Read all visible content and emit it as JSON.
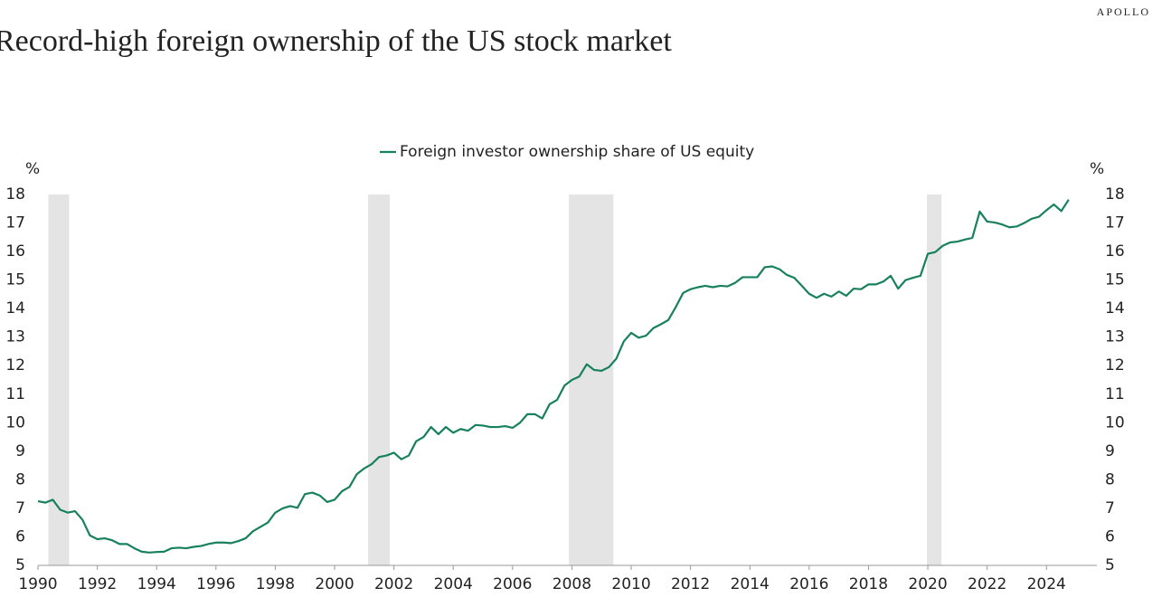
{
  "brand": "APOLLO",
  "chart_data": {
    "type": "line",
    "title": "Record-high foreign ownership of the US stock market",
    "y_unit_label": "%",
    "y2_unit_label": "%",
    "x": [
      1990,
      1990.25,
      1990.5,
      1990.75,
      1991,
      1991.25,
      1991.5,
      1991.75,
      1992,
      1992.25,
      1992.5,
      1992.75,
      1993,
      1993.25,
      1993.5,
      1993.75,
      1994,
      1994.25,
      1994.5,
      1994.75,
      1995,
      1995.25,
      1995.5,
      1995.75,
      1996,
      1996.25,
      1996.5,
      1996.75,
      1997,
      1997.25,
      1997.5,
      1997.75,
      1998,
      1998.25,
      1998.5,
      1998.75,
      1999,
      1999.25,
      1999.5,
      1999.75,
      2000,
      2000.25,
      2000.5,
      2000.75,
      2001,
      2001.25,
      2001.5,
      2001.75,
      2002,
      2002.25,
      2002.5,
      2002.75,
      2003,
      2003.25,
      2003.5,
      2003.75,
      2004,
      2004.25,
      2004.5,
      2004.75,
      2005,
      2005.25,
      2005.5,
      2005.75,
      2006,
      2006.25,
      2006.5,
      2006.75,
      2007,
      2007.25,
      2007.5,
      2007.75,
      2008,
      2008.25,
      2008.5,
      2008.75,
      2009,
      2009.25,
      2009.5,
      2009.75,
      2010,
      2010.25,
      2010.5,
      2010.75,
      2011,
      2011.25,
      2011.5,
      2011.75,
      2012,
      2012.25,
      2012.5,
      2012.75,
      2013,
      2013.25,
      2013.5,
      2013.75,
      2014,
      2014.25,
      2014.5,
      2014.75,
      2015,
      2015.25,
      2015.5,
      2015.75,
      2016,
      2016.25,
      2016.5,
      2016.75,
      2017,
      2017.25,
      2017.5,
      2017.75,
      2018,
      2018.25,
      2018.5,
      2018.75,
      2019,
      2019.25,
      2019.5,
      2019.75,
      2020,
      2020.25,
      2020.5,
      2020.75,
      2021,
      2021.25,
      2021.5,
      2021.75,
      2022,
      2022.25,
      2022.5,
      2022.75,
      2023,
      2023.25,
      2023.5,
      2023.75,
      2024,
      2024.25,
      2024.5,
      2024.75
    ],
    "series": [
      {
        "name": "Foreign investor ownership share of US equity",
        "color": "#17805e",
        "values": [
          7.25,
          7.2,
          7.3,
          6.95,
          6.85,
          6.9,
          6.6,
          6.05,
          5.92,
          5.95,
          5.88,
          5.75,
          5.75,
          5.6,
          5.48,
          5.45,
          5.47,
          5.48,
          5.6,
          5.62,
          5.6,
          5.65,
          5.68,
          5.75,
          5.8,
          5.8,
          5.78,
          5.85,
          5.95,
          6.2,
          6.35,
          6.5,
          6.85,
          7.0,
          7.08,
          7.02,
          7.5,
          7.55,
          7.45,
          7.22,
          7.3,
          7.6,
          7.75,
          8.2,
          8.4,
          8.55,
          8.8,
          8.85,
          8.95,
          8.72,
          8.85,
          9.35,
          9.5,
          9.85,
          9.6,
          9.85,
          9.65,
          9.78,
          9.72,
          9.92,
          9.9,
          9.85,
          9.85,
          9.88,
          9.82,
          10.0,
          10.3,
          10.3,
          10.15,
          10.65,
          10.8,
          11.3,
          11.5,
          11.62,
          12.05,
          11.85,
          11.82,
          11.95,
          12.25,
          12.85,
          13.15,
          12.98,
          13.05,
          13.32,
          13.45,
          13.6,
          14.05,
          14.55,
          14.68,
          14.75,
          14.8,
          14.75,
          14.8,
          14.78,
          14.9,
          15.1,
          15.1,
          15.1,
          15.45,
          15.48,
          15.38,
          15.18,
          15.08,
          14.8,
          14.52,
          14.38,
          14.52,
          14.42,
          14.6,
          14.45,
          14.7,
          14.68,
          14.85,
          14.85,
          14.95,
          15.15,
          14.7,
          15.0,
          15.08,
          15.15,
          15.92,
          15.98,
          16.2,
          16.32,
          16.35,
          16.42,
          16.48,
          17.4,
          17.05,
          17.02,
          16.95,
          16.85,
          16.88,
          17.0,
          17.15,
          17.22,
          17.45,
          17.65,
          17.42,
          17.82
        ]
      }
    ],
    "recessions": [
      [
        1990.35,
        1991.05
      ],
      [
        2001.13,
        2001.86
      ],
      [
        2007.9,
        2009.4
      ],
      [
        2019.97,
        2020.46
      ]
    ],
    "recession_color": "#e3e4e3",
    "xlim": [
      1990,
      2025.7
    ],
    "xticks": [
      1990,
      1992,
      1994,
      1996,
      1998,
      2000,
      2002,
      2004,
      2006,
      2008,
      2010,
      2012,
      2014,
      2016,
      2018,
      2020,
      2022,
      2024
    ],
    "ylim": [
      5,
      18
    ],
    "yticks": [
      5,
      6,
      7,
      8,
      9,
      10,
      11,
      12,
      13,
      14,
      15,
      16,
      17,
      18
    ],
    "y2lim": [
      5,
      18
    ],
    "y2ticks": [
      5,
      6,
      7,
      8,
      9,
      10,
      11,
      12,
      13,
      14,
      15,
      16,
      17,
      18
    ],
    "legend": "top"
  }
}
